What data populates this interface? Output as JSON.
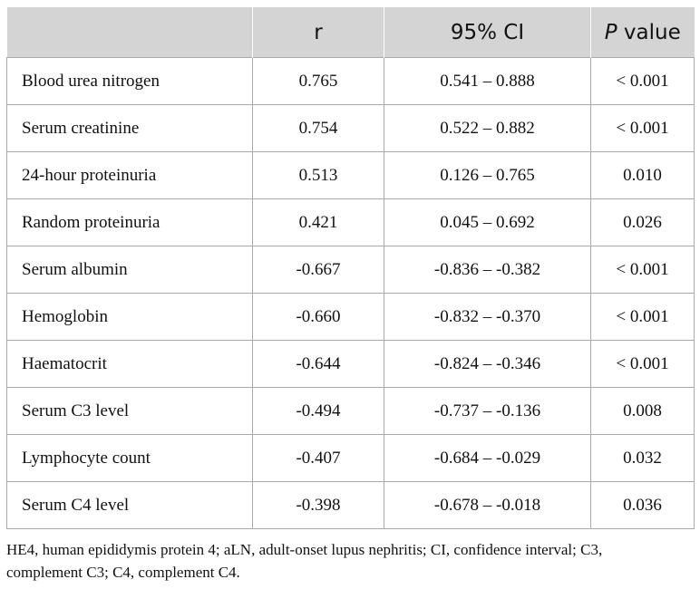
{
  "table": {
    "headers": {
      "name": "",
      "r": "r",
      "ci": "95% CI",
      "p_italic": "P",
      "p_rest": " value"
    },
    "rows": [
      {
        "name": "Blood urea nitrogen",
        "r": "0.765",
        "ci": "0.541 – 0.888",
        "p": "< 0.001"
      },
      {
        "name": "Serum creatinine",
        "r": "0.754",
        "ci": "0.522 – 0.882",
        "p": "< 0.001"
      },
      {
        "name": "24-hour proteinuria",
        "r": "0.513",
        "ci": "0.126 – 0.765",
        "p": "0.010"
      },
      {
        "name": "Random proteinuria",
        "r": "0.421",
        "ci": "0.045 – 0.692",
        "p": "0.026"
      },
      {
        "name": "Serum albumin",
        "r": "-0.667",
        "ci": "-0.836 – -0.382",
        "p": "< 0.001"
      },
      {
        "name": "Hemoglobin",
        "r": "-0.660",
        "ci": "-0.832 – -0.370",
        "p": "< 0.001"
      },
      {
        "name": "Haematocrit",
        "r": "-0.644",
        "ci": "-0.824 – -0.346",
        "p": "< 0.001"
      },
      {
        "name": "Serum C3 level",
        "r": "-0.494",
        "ci": "-0.737 – -0.136",
        "p": "0.008"
      },
      {
        "name": "Lymphocyte count",
        "r": "-0.407",
        "ci": "-0.684 – -0.029",
        "p": "0.032"
      },
      {
        "name": "Serum C4 level",
        "r": "-0.398",
        "ci": "-0.678 – -0.018",
        "p": "0.036"
      }
    ]
  },
  "footnote": "HE4, human epididymis protein 4; aLN, adult-onset lupus nephritis; CI, confidence interval; C3, complement C3; C4, complement C4.",
  "colors": {
    "header_bg": "#d4d4d4",
    "border": "#a9a9a9",
    "text": "#111111"
  }
}
